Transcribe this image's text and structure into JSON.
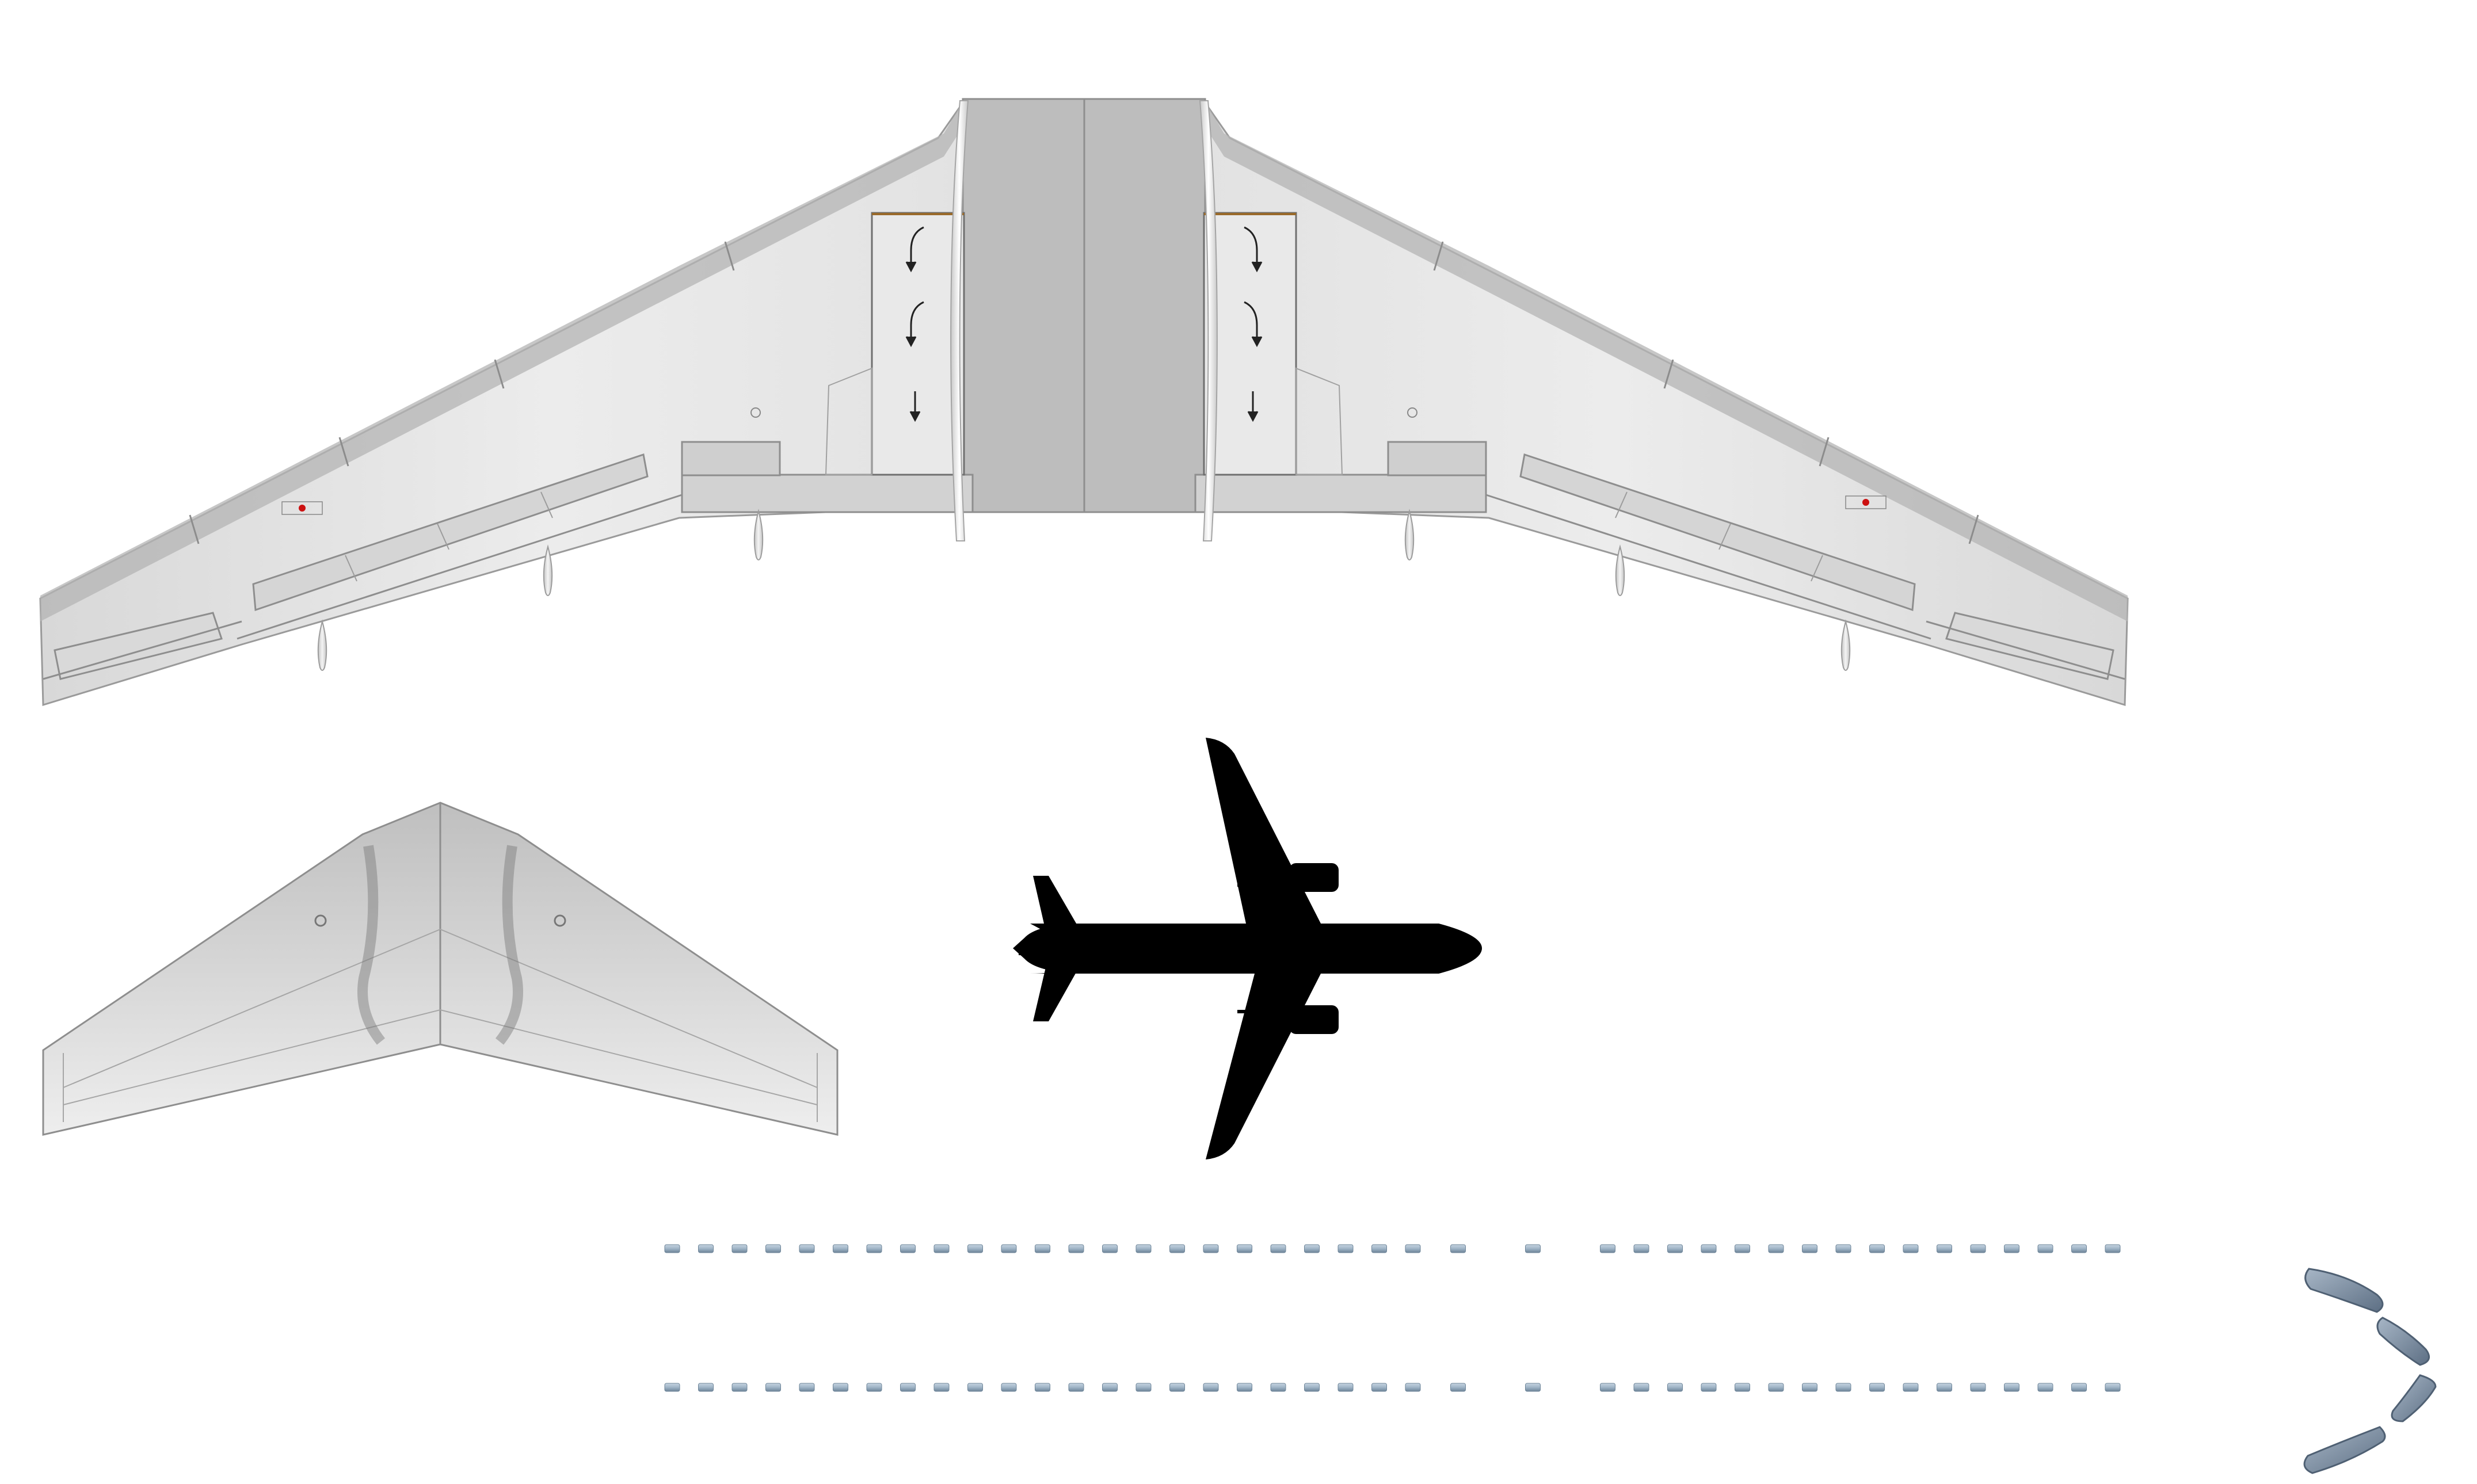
{
  "sheet": {
    "background": "#ffffff",
    "colors": {
      "wing_skin": "#dedede",
      "wing_skin_light": "#ececec",
      "leading_edge": "#b6b6b6",
      "center_box": "#bdbdbd",
      "panel_lines": "#8a8a8a",
      "silhouette": "#000000",
      "window": "#9fb4c6",
      "window_dark": "#6d8498",
      "cockpit_window": "#7d8fa3",
      "red_marker": "#cc1111",
      "flap_brown": "#9a6a2a"
    }
  },
  "parts": [
    {
      "name": "main-wing-underside",
      "icon": "wing-planform-icon"
    },
    {
      "name": "horizontal-stabilizer",
      "icon": "tailplane-planform-icon"
    },
    {
      "name": "aircraft-silhouette",
      "icon": "airplane-top-view-icon"
    },
    {
      "name": "cabin-window-strip-upper",
      "icon": "window-row-icon"
    },
    {
      "name": "cabin-window-strip-lower",
      "icon": "window-row-icon"
    },
    {
      "name": "cockpit-windshield",
      "icon": "windshield-panels-icon"
    }
  ],
  "window_rows": {
    "windows_forward": 23,
    "exit_windows": 2,
    "windows_aft": 16
  },
  "flap_track_fairings_per_side": 3,
  "engine_pylons_per_side": 1
}
